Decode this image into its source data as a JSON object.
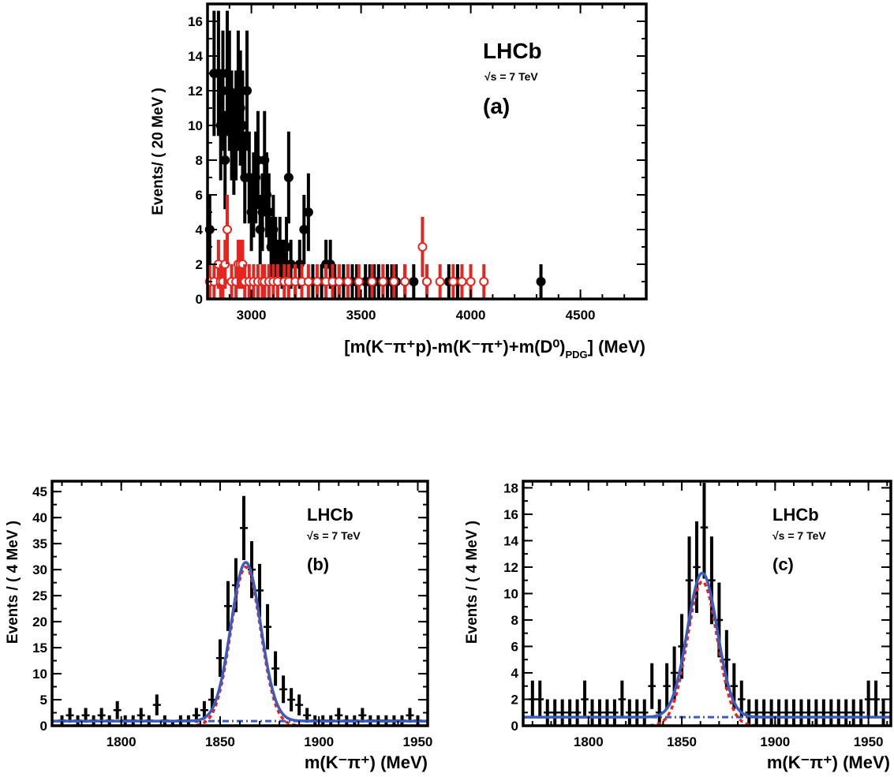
{
  "chart_data": [
    {
      "panel": "a",
      "type": "scatter",
      "xlabel": "[m(K⁻π⁺p)-m(K⁻π⁺)+m(D⁰)",
      "xlabel_sub": "PDG",
      "xlabel_unit": "] (MeV)",
      "ylabel": "Events/ ( 20 MeV )",
      "experiment": "LHCb",
      "energy_label": "√s = 7 TeV",
      "panel_label": "(a)",
      "xlim": [
        2800,
        4800
      ],
      "ylim": [
        0,
        17
      ],
      "xticks": [
        "3000",
        "3500",
        "4000",
        "4500"
      ],
      "yticks": [
        "0",
        "2",
        "4",
        "6",
        "8",
        "10",
        "12",
        "14",
        "16"
      ],
      "series": [
        {
          "marker": "filled",
          "color": "#000000",
          "x": [
            2810,
            2830,
            2850,
            2860,
            2870,
            2880,
            2890,
            2900,
            2910,
            2920,
            2930,
            2940,
            2950,
            2960,
            2970,
            2980,
            2990,
            3000,
            3010,
            3020,
            3030,
            3040,
            3050,
            3060,
            3070,
            3080,
            3090,
            3100,
            3110,
            3120,
            3130,
            3140,
            3150,
            3160,
            3170,
            3180,
            3200,
            3220,
            3240,
            3260,
            3280,
            3300,
            3320,
            3340,
            3360,
            3380,
            3400,
            3420,
            3440,
            3460,
            3480,
            3520,
            3540,
            3560,
            3580,
            3600,
            3620,
            3640,
            3660,
            3700,
            3740,
            3800,
            3900,
            3940,
            3960,
            4320
          ],
          "y": [
            4,
            13,
            13,
            10,
            12,
            8,
            13,
            12,
            10,
            9,
            10,
            12,
            11,
            10,
            7,
            12,
            7,
            5,
            6,
            7,
            8,
            4,
            5,
            8,
            6,
            5,
            3,
            4,
            3,
            2,
            3,
            2,
            2,
            3,
            7,
            2,
            1,
            2,
            4,
            5,
            1,
            1,
            1,
            2,
            2,
            1,
            1,
            1,
            1,
            1,
            1,
            1,
            1,
            1,
            1,
            1,
            1,
            1,
            1,
            1,
            1,
            1,
            1,
            1,
            1,
            1
          ]
        },
        {
          "marker": "open",
          "color": "#e8241f",
          "x": [
            2810,
            2830,
            2850,
            2860,
            2870,
            2880,
            2890,
            2910,
            2930,
            2940,
            2950,
            2960,
            2970,
            2990,
            3010,
            3030,
            3050,
            3060,
            3080,
            3100,
            3120,
            3150,
            3170,
            3200,
            3230,
            3260,
            3300,
            3340,
            3370,
            3400,
            3440,
            3490,
            3550,
            3600,
            3650,
            3700,
            3780,
            3800,
            3860,
            3920,
            3960,
            4000,
            4060
          ],
          "y": [
            1,
            1,
            2,
            1,
            1,
            2,
            4,
            1,
            1,
            2,
            2,
            2,
            1,
            1,
            1,
            1,
            1,
            1,
            1,
            1,
            1,
            1,
            1,
            1,
            1,
            1,
            1,
            1,
            1,
            1,
            1,
            1,
            1,
            1,
            1,
            1,
            3,
            1,
            1,
            1,
            1,
            1,
            1
          ]
        }
      ]
    },
    {
      "panel": "b",
      "type": "scatter",
      "xlabel": "m(K⁻π⁺) (MeV)",
      "ylabel": "Events / ( 4 MeV )",
      "experiment": "LHCb",
      "energy_label": "√s = 7 TeV",
      "panel_label": "(b)",
      "xlim": [
        1765,
        1955
      ],
      "ylim": [
        0,
        47
      ],
      "xticks": [
        "1800",
        "1850",
        "1900",
        "1950"
      ],
      "yticks": [
        "0",
        "5",
        "10",
        "15",
        "20",
        "25",
        "30",
        "35",
        "40",
        "45"
      ],
      "signal": {
        "mean": 1863,
        "sigma": 7.5,
        "amplitude": 30.5,
        "background": 0.9
      },
      "points": {
        "x": [
          1770,
          1774,
          1778,
          1782,
          1786,
          1790,
          1794,
          1798,
          1802,
          1806,
          1810,
          1814,
          1818,
          1822,
          1826,
          1830,
          1834,
          1838,
          1842,
          1846,
          1850,
          1854,
          1858,
          1862,
          1866,
          1870,
          1874,
          1878,
          1882,
          1886,
          1890,
          1894,
          1898,
          1902,
          1906,
          1910,
          1914,
          1918,
          1922,
          1926,
          1930,
          1934,
          1938,
          1942,
          1946,
          1950
        ],
        "y": [
          1,
          2,
          1,
          2,
          1,
          2,
          1,
          3,
          1,
          1,
          2,
          1,
          4,
          1,
          0,
          1,
          1,
          2,
          3,
          5,
          13,
          23,
          27,
          38,
          30,
          26,
          19,
          11,
          7,
          5,
          4,
          2,
          1,
          1,
          1,
          2,
          1,
          1,
          2,
          1,
          1,
          1,
          1,
          1,
          2,
          1
        ]
      }
    },
    {
      "panel": "c",
      "type": "scatter",
      "xlabel": "m(K⁻π⁺) (MeV)",
      "ylabel": "Events / ( 4 MeV )",
      "experiment": "LHCb",
      "energy_label": "√s = 7 TeV",
      "panel_label": "(c)",
      "xlim": [
        1765,
        1962
      ],
      "ylim": [
        0,
        18.5
      ],
      "xticks": [
        "1800",
        "1850",
        "1900",
        "1950"
      ],
      "yticks": [
        "0",
        "2",
        "4",
        "6",
        "8",
        "10",
        "12",
        "14",
        "16",
        "18"
      ],
      "signal": {
        "mean": 1861,
        "sigma": 8.0,
        "amplitude": 10.9,
        "background": 0.65
      },
      "points": {
        "x": [
          1770,
          1774,
          1778,
          1782,
          1786,
          1790,
          1794,
          1798,
          1802,
          1806,
          1810,
          1814,
          1818,
          1822,
          1826,
          1830,
          1834,
          1838,
          1842,
          1846,
          1850,
          1854,
          1858,
          1862,
          1866,
          1870,
          1874,
          1878,
          1882,
          1886,
          1890,
          1894,
          1898,
          1902,
          1906,
          1910,
          1914,
          1918,
          1922,
          1926,
          1930,
          1934,
          1938,
          1942,
          1946,
          1950,
          1954,
          1958
        ],
        "y": [
          2,
          2,
          1,
          1,
          1,
          1,
          1,
          2,
          1,
          1,
          1,
          1,
          2,
          1,
          1,
          1,
          3,
          1,
          3,
          4,
          6,
          11,
          12,
          15,
          11,
          8,
          5,
          3,
          2,
          1,
          1,
          1,
          1,
          1,
          1,
          1,
          1,
          1,
          1,
          1,
          1,
          1,
          1,
          1,
          1,
          2,
          2,
          1
        ]
      }
    }
  ]
}
